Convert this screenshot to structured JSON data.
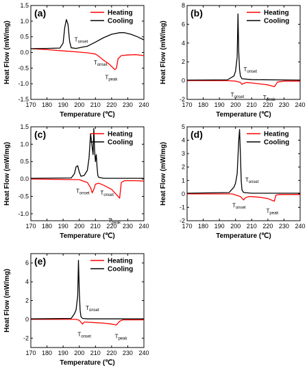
{
  "chart_data": [
    {
      "type": "line",
      "panel_label": "(a)",
      "xlabel": "Temperature (℃)",
      "ylabel": "Heat Flow (mW/mg)",
      "xlim": [
        170,
        240
      ],
      "ylim": [
        -1.5,
        1.5
      ],
      "xticks": [
        "170",
        "180",
        "190",
        "200",
        "210",
        "220",
        "230",
        "240"
      ],
      "yticks": [
        "-1.5",
        "-1.0",
        "-0.5",
        "0.0",
        "0.5",
        "1.0",
        "1.5"
      ],
      "legend": [
        "Heating",
        "Cooling"
      ],
      "legend_position": "top-right",
      "colors": {
        "Heating": "#ff0000",
        "Cooling": "#000000"
      },
      "series": [
        {
          "name": "Heating",
          "x": [
            170,
            180,
            190,
            200,
            205,
            210,
            212,
            215,
            218,
            220,
            222,
            223,
            224,
            226,
            230,
            235,
            240
          ],
          "y": [
            0.12,
            0.09,
            0.05,
            0.01,
            -0.01,
            -0.05,
            -0.12,
            -0.25,
            -0.35,
            -0.45,
            -0.55,
            -0.5,
            -0.2,
            -0.1,
            -0.08,
            -0.07,
            -0.1
          ]
        },
        {
          "name": "Cooling",
          "x": [
            170,
            180,
            188,
            190,
            191,
            192,
            193,
            194,
            195,
            198,
            205,
            210,
            215,
            220,
            225,
            228,
            232,
            236,
            240
          ],
          "y": [
            0.12,
            0.13,
            0.14,
            0.3,
            0.8,
            1.05,
            0.9,
            0.35,
            0.15,
            0.13,
            0.2,
            0.33,
            0.47,
            0.58,
            0.63,
            0.63,
            0.58,
            0.5,
            0.4
          ]
        }
      ],
      "annotations": [
        {
          "label": "T",
          "sub": "onset",
          "x": 197,
          "y": 0.35
        },
        {
          "label": "T",
          "sub": "onset",
          "x": 209,
          "y": -0.38
        },
        {
          "label": "T",
          "sub": "peak",
          "x": 216,
          "y": -0.85
        }
      ]
    },
    {
      "type": "line",
      "panel_label": "(b)",
      "xlabel": "Temperature (℃)",
      "ylabel": "Heat Flow (mW/mg)",
      "xlim": [
        170,
        240
      ],
      "ylim": [
        -2,
        8
      ],
      "xticks": [
        "170",
        "180",
        "190",
        "200",
        "210",
        "220",
        "230",
        "240"
      ],
      "yticks": [
        "-2",
        "0",
        "2",
        "4",
        "6",
        "8"
      ],
      "legend": [
        "Heating",
        "Cooling"
      ],
      "legend_position": "top-right",
      "colors": {
        "Heating": "#ff0000",
        "Cooling": "#000000"
      },
      "series": [
        {
          "name": "Heating",
          "x": [
            170,
            195,
            200,
            203,
            204,
            205,
            207,
            210,
            215,
            220,
            222,
            224,
            226,
            230,
            240
          ],
          "y": [
            0,
            0,
            -0.05,
            -0.2,
            -0.4,
            -0.3,
            -0.2,
            -0.25,
            -0.35,
            -0.45,
            -0.55,
            -0.65,
            -0.15,
            -0.05,
            -0.05
          ]
        },
        {
          "name": "Cooling",
          "x": [
            170,
            195,
            199,
            200,
            201,
            201.5,
            202,
            202.5,
            203,
            204,
            210,
            240
          ],
          "y": [
            0.05,
            0.08,
            0.5,
            1.0,
            2.5,
            7.1,
            3.0,
            1.2,
            0.5,
            0.2,
            0.1,
            0.05
          ]
        }
      ],
      "annotations": [
        {
          "label": "T",
          "sub": "onset",
          "x": 205,
          "y": 1.0
        },
        {
          "label": "T",
          "sub": "onset",
          "x": 197,
          "y": -1.7
        },
        {
          "label": "T",
          "sub": "peak",
          "x": 217,
          "y": -2.0
        }
      ]
    },
    {
      "type": "line",
      "panel_label": "(c)",
      "xlabel": "Temperature (℃)",
      "ylabel": "Heat Flow (mW/mg)",
      "xlim": [
        170,
        240
      ],
      "ylim": [
        -1.2,
        1.5
      ],
      "xticks": [
        "170",
        "180",
        "190",
        "200",
        "210",
        "220",
        "230",
        "240"
      ],
      "yticks": [
        "-1.0",
        "-0.5",
        "0.0",
        "0.5",
        "1.0",
        "1.5"
      ],
      "legend": [
        "Heating",
        "Cooling"
      ],
      "legend_position": "top-right",
      "colors": {
        "Heating": "#ff0000",
        "Cooling": "#000000"
      },
      "series": [
        {
          "name": "Heating",
          "x": [
            170,
            200,
            205,
            207,
            208,
            209,
            210,
            212,
            215,
            220,
            223,
            225,
            226,
            228,
            235,
            240
          ],
          "y": [
            0,
            -0.02,
            -0.1,
            -0.25,
            -0.4,
            -0.3,
            -0.15,
            -0.12,
            -0.18,
            -0.3,
            -0.45,
            -0.55,
            -0.1,
            -0.05,
            -0.05,
            -0.06
          ]
        },
        {
          "name": "Cooling",
          "x": [
            170,
            195,
            197,
            198,
            199,
            200,
            201,
            203,
            205,
            206,
            207,
            208,
            208.5,
            209,
            209.5,
            210,
            210.5,
            211,
            211.5,
            212,
            215,
            240
          ],
          "y": [
            0.02,
            0.03,
            0.15,
            0.35,
            0.38,
            0.2,
            0.08,
            0.1,
            0.25,
            0.6,
            1.3,
            0.9,
            0.7,
            1.45,
            0.8,
            0.5,
            0.7,
            0.35,
            0.1,
            0.05,
            0.02,
            0.02
          ]
        }
      ],
      "annotations": [
        {
          "label": "T",
          "sub": "onset",
          "x": 213,
          "y": -0.45
        },
        {
          "label": "T",
          "sub": "onset",
          "x": 198,
          "y": -0.4
        },
        {
          "label": "T",
          "sub": "peak",
          "x": 218,
          "y": -1.25
        }
      ]
    },
    {
      "type": "line",
      "panel_label": "(d)",
      "xlabel": "Temperature (℃)",
      "ylabel": "Heat Flow (mW/mg)",
      "xlim": [
        170,
        240
      ],
      "ylim": [
        -2,
        5
      ],
      "xticks": [
        "170",
        "180",
        "190",
        "200",
        "210",
        "220",
        "230",
        "240"
      ],
      "yticks": [
        "-2",
        "-1",
        "0",
        "1",
        "2",
        "3",
        "4",
        "5"
      ],
      "legend": [
        "Heating",
        "Cooling"
      ],
      "legend_position": "top-right",
      "colors": {
        "Heating": "#ff0000",
        "Cooling": "#000000"
      },
      "series": [
        {
          "name": "Heating",
          "x": [
            170,
            198,
            203,
            205,
            206,
            208,
            210,
            215,
            220,
            223,
            224,
            225,
            227,
            235,
            240
          ],
          "y": [
            0,
            0,
            -0.2,
            -0.45,
            -0.3,
            -0.2,
            -0.2,
            -0.25,
            -0.35,
            -0.5,
            -0.55,
            -0.1,
            -0.05,
            -0.05,
            -0.05
          ]
        },
        {
          "name": "Cooling",
          "x": [
            170,
            196,
            199,
            200,
            201,
            202,
            202.5,
            203,
            203.5,
            204,
            205,
            210,
            240
          ],
          "y": [
            0.05,
            0.1,
            0.5,
            0.8,
            1.5,
            4.0,
            4.8,
            3.0,
            1.0,
            0.3,
            0.1,
            0.05,
            0.05
          ]
        }
      ],
      "annotations": [
        {
          "label": "T",
          "sub": "onset",
          "x": 206,
          "y": 0.9
        },
        {
          "label": "T",
          "sub": "onset",
          "x": 198,
          "y": -1.0
        },
        {
          "label": "T",
          "sub": "peak",
          "x": 219,
          "y": -1.4
        }
      ]
    },
    {
      "type": "line",
      "panel_label": "(e)",
      "xlabel": "Temperature (℃)",
      "ylabel": "Heat Flow (mW/mg)",
      "xlim": [
        170,
        240
      ],
      "ylim": [
        -3,
        7
      ],
      "xticks": [
        "170",
        "180",
        "190",
        "200",
        "210",
        "220",
        "230",
        "240"
      ],
      "yticks": [
        "-2",
        "0",
        "2",
        "4",
        "6"
      ],
      "legend": [
        "Heating",
        "Cooling"
      ],
      "legend_position": "top-right",
      "colors": {
        "Heating": "#ff0000",
        "Cooling": "#000000"
      },
      "series": [
        {
          "name": "Heating",
          "x": [
            170,
            198,
            200,
            201,
            202,
            203,
            205,
            210,
            215,
            220,
            223,
            225,
            227,
            235,
            240
          ],
          "y": [
            0,
            0,
            -0.1,
            -0.3,
            -0.5,
            -0.3,
            -0.3,
            -0.35,
            -0.4,
            -0.5,
            -0.6,
            -0.2,
            -0.05,
            -0.05,
            -0.05
          ]
        },
        {
          "name": "Cooling",
          "x": [
            170,
            195,
            197,
            198,
            199,
            199.5,
            200,
            200.5,
            201,
            202,
            205,
            240
          ],
          "y": [
            0.05,
            0.1,
            0.6,
            1.0,
            2.5,
            6.3,
            3.0,
            1.0,
            0.3,
            0.1,
            0.05,
            0.05
          ]
        }
      ],
      "annotations": [
        {
          "label": "T",
          "sub": "onset",
          "x": 204,
          "y": 1.0
        },
        {
          "label": "T",
          "sub": "onset",
          "x": 199,
          "y": -1.8
        },
        {
          "label": "T",
          "sub": "peak",
          "x": 222,
          "y": -2.0
        }
      ]
    }
  ]
}
